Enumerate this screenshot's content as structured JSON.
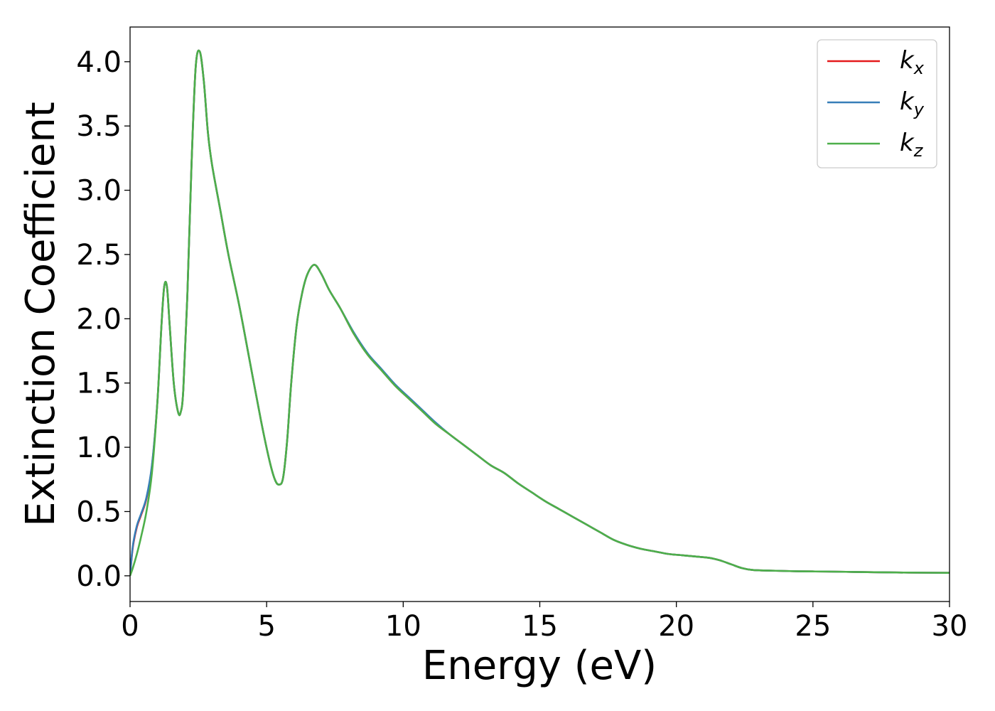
{
  "chart_data": {
    "type": "line",
    "xlabel": "Energy (eV)",
    "ylabel": "Extinction Coefficient",
    "xlim": [
      0,
      30
    ],
    "ylim": [
      -0.2,
      4.27
    ],
    "x_ticks": [
      "0",
      "5",
      "10",
      "15",
      "20",
      "25",
      "30"
    ],
    "x_tick_values": [
      0,
      5,
      10,
      15,
      20,
      25,
      30
    ],
    "y_ticks": [
      "0.0",
      "0.5",
      "1.0",
      "1.5",
      "2.0",
      "2.5",
      "3.0",
      "3.5",
      "4.0"
    ],
    "y_tick_values": [
      0,
      0.5,
      1.0,
      1.5,
      2.0,
      2.5,
      3.0,
      3.5,
      4.0
    ],
    "grid": false,
    "legend_position": "top-right",
    "series": [
      {
        "name": "k_x",
        "label_base": "k",
        "label_sub": "x",
        "color": "#e41a1c",
        "x": [
          0,
          0.1,
          0.25,
          0.4,
          0.6,
          0.8,
          1.0,
          1.15,
          1.25,
          1.35,
          1.45,
          1.6,
          1.75,
          1.85,
          1.95,
          2.1,
          2.25,
          2.4,
          2.55,
          2.7,
          2.85,
          3.0,
          3.3,
          3.6,
          4.0,
          4.4,
          4.8,
          5.1,
          5.3,
          5.45,
          5.6,
          5.75,
          5.9,
          6.1,
          6.3,
          6.5,
          6.75,
          7.0,
          7.3,
          7.7,
          8.2,
          8.7,
          9.2,
          9.7,
          10.2,
          10.7,
          11.2,
          11.7,
          12.2,
          12.7,
          13.2,
          13.7,
          14.2,
          14.7,
          15.2,
          15.7,
          16.2,
          16.7,
          17.2,
          17.7,
          18.2,
          18.7,
          19.2,
          19.7,
          20.2,
          20.7,
          21.2,
          21.6,
          22.0,
          22.4,
          22.8,
          23.5,
          24.5,
          25.5,
          26.5,
          27.5,
          28.5,
          30.0
        ],
        "y": [
          0.0,
          0.22,
          0.38,
          0.47,
          0.6,
          0.85,
          1.35,
          1.95,
          2.25,
          2.25,
          1.95,
          1.5,
          1.28,
          1.27,
          1.45,
          2.2,
          3.2,
          3.95,
          4.08,
          3.85,
          3.45,
          3.2,
          2.85,
          2.5,
          2.1,
          1.65,
          1.2,
          0.9,
          0.75,
          0.71,
          0.76,
          1.05,
          1.5,
          1.95,
          2.2,
          2.35,
          2.42,
          2.35,
          2.22,
          2.08,
          1.88,
          1.72,
          1.6,
          1.48,
          1.38,
          1.28,
          1.18,
          1.1,
          1.02,
          0.94,
          0.86,
          0.8,
          0.72,
          0.65,
          0.58,
          0.52,
          0.46,
          0.4,
          0.34,
          0.28,
          0.24,
          0.21,
          0.19,
          0.17,
          0.16,
          0.15,
          0.14,
          0.12,
          0.09,
          0.06,
          0.045,
          0.04,
          0.035,
          0.033,
          0.03,
          0.027,
          0.025,
          0.023
        ]
      },
      {
        "name": "k_y",
        "label_base": "k",
        "label_sub": "y",
        "color": "#377eb8",
        "x": [
          0,
          0.1,
          0.25,
          0.4,
          0.6,
          0.8,
          1.0,
          1.15,
          1.25,
          1.35,
          1.45,
          1.6,
          1.75,
          1.85,
          1.95,
          2.1,
          2.25,
          2.4,
          2.55,
          2.7,
          2.85,
          3.0,
          3.3,
          3.6,
          4.0,
          4.4,
          4.8,
          5.1,
          5.3,
          5.45,
          5.6,
          5.75,
          5.9,
          6.1,
          6.3,
          6.5,
          6.75,
          7.0,
          7.3,
          7.7,
          8.2,
          8.7,
          9.2,
          9.7,
          10.2,
          10.7,
          11.2,
          11.7,
          12.2,
          12.7,
          13.2,
          13.7,
          14.2,
          14.7,
          15.2,
          15.7,
          16.2,
          16.7,
          17.2,
          17.7,
          18.2,
          18.7,
          19.2,
          19.7,
          20.2,
          20.7,
          21.2,
          21.6,
          22.0,
          22.4,
          22.8,
          23.5,
          24.5,
          25.5,
          26.5,
          27.5,
          28.5,
          30.0
        ],
        "y": [
          0.0,
          0.23,
          0.39,
          0.48,
          0.61,
          0.86,
          1.35,
          1.95,
          2.25,
          2.25,
          1.95,
          1.5,
          1.28,
          1.27,
          1.45,
          2.2,
          3.2,
          3.95,
          4.08,
          3.85,
          3.45,
          3.2,
          2.85,
          2.5,
          2.1,
          1.65,
          1.2,
          0.9,
          0.75,
          0.71,
          0.76,
          1.05,
          1.5,
          1.95,
          2.2,
          2.35,
          2.42,
          2.35,
          2.22,
          2.08,
          1.89,
          1.73,
          1.61,
          1.49,
          1.39,
          1.29,
          1.19,
          1.1,
          1.02,
          0.94,
          0.86,
          0.8,
          0.72,
          0.65,
          0.58,
          0.52,
          0.46,
          0.4,
          0.34,
          0.28,
          0.24,
          0.21,
          0.19,
          0.17,
          0.16,
          0.15,
          0.14,
          0.12,
          0.09,
          0.06,
          0.045,
          0.04,
          0.035,
          0.033,
          0.03,
          0.027,
          0.025,
          0.023
        ]
      },
      {
        "name": "k_z",
        "label_base": "k",
        "label_sub": "z",
        "color": "#4daf4a",
        "x": [
          0,
          0.1,
          0.25,
          0.4,
          0.6,
          0.8,
          1.0,
          1.15,
          1.25,
          1.35,
          1.45,
          1.6,
          1.75,
          1.85,
          1.95,
          2.1,
          2.25,
          2.4,
          2.55,
          2.7,
          2.85,
          3.0,
          3.3,
          3.6,
          4.0,
          4.4,
          4.8,
          5.1,
          5.3,
          5.45,
          5.6,
          5.75,
          5.9,
          6.1,
          6.3,
          6.5,
          6.75,
          7.0,
          7.3,
          7.7,
          8.2,
          8.7,
          9.2,
          9.7,
          10.2,
          10.7,
          11.2,
          11.7,
          12.2,
          12.7,
          13.2,
          13.7,
          14.2,
          14.7,
          15.2,
          15.7,
          16.2,
          16.7,
          17.2,
          17.7,
          18.2,
          18.7,
          19.2,
          19.7,
          20.2,
          20.7,
          21.2,
          21.6,
          22.0,
          22.4,
          22.8,
          23.5,
          24.5,
          25.5,
          26.5,
          27.5,
          28.5,
          30.0
        ],
        "y": [
          0.0,
          0.06,
          0.17,
          0.3,
          0.5,
          0.8,
          1.35,
          1.95,
          2.25,
          2.25,
          1.95,
          1.5,
          1.28,
          1.27,
          1.45,
          2.2,
          3.2,
          3.95,
          4.08,
          3.85,
          3.45,
          3.2,
          2.85,
          2.5,
          2.1,
          1.65,
          1.2,
          0.9,
          0.75,
          0.71,
          0.76,
          1.05,
          1.5,
          1.95,
          2.2,
          2.35,
          2.42,
          2.35,
          2.22,
          2.08,
          1.88,
          1.72,
          1.6,
          1.48,
          1.38,
          1.28,
          1.18,
          1.1,
          1.02,
          0.94,
          0.86,
          0.8,
          0.72,
          0.65,
          0.58,
          0.52,
          0.46,
          0.4,
          0.34,
          0.28,
          0.24,
          0.21,
          0.19,
          0.17,
          0.16,
          0.15,
          0.14,
          0.12,
          0.09,
          0.06,
          0.045,
          0.04,
          0.035,
          0.033,
          0.03,
          0.027,
          0.025,
          0.023
        ]
      }
    ]
  }
}
